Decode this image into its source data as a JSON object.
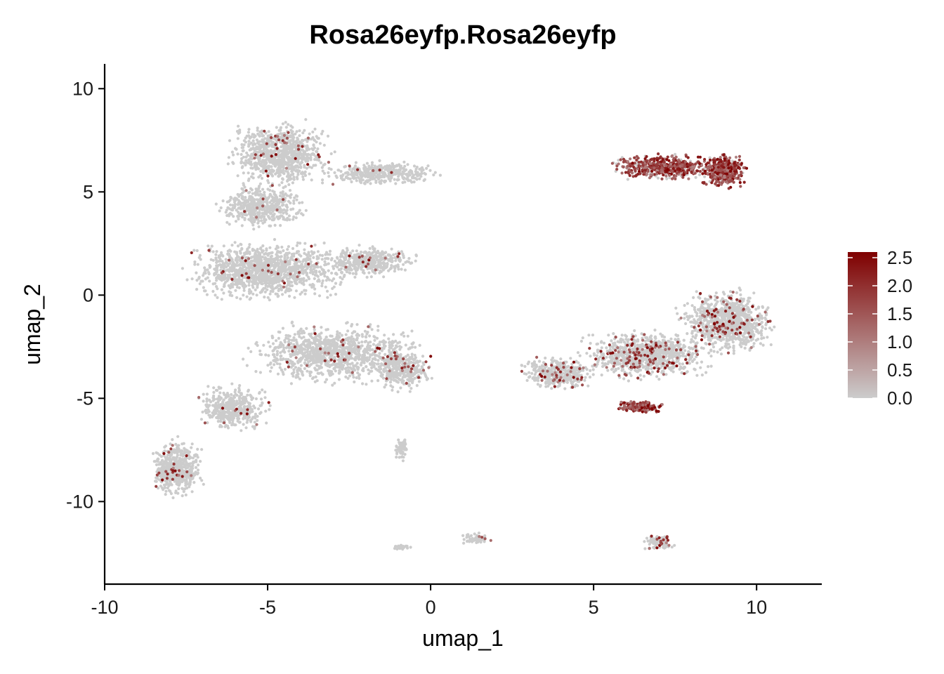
{
  "chart_data": {
    "type": "scatter",
    "title": "Rosa26eyfp.Rosa26eyfp",
    "xlabel": "umap_1",
    "ylabel": "umap_2",
    "xlim": [
      -10,
      12
    ],
    "ylim": [
      -14,
      11.2
    ],
    "x_ticks": [
      -10,
      -5,
      0,
      5,
      10
    ],
    "x_tick_labels": [
      "-10",
      "-5",
      "0",
      "5",
      "10"
    ],
    "y_ticks": [
      -10,
      -5,
      0,
      5,
      10
    ],
    "y_tick_labels": [
      "-10",
      "-5",
      "0",
      "5",
      "10"
    ],
    "grid": false,
    "colors": {
      "low": "#cccccc",
      "high": "#7f0000",
      "axis": "#000000"
    },
    "legend": {
      "position": "right",
      "range": [
        0,
        2.5
      ],
      "ticks": [
        0,
        0.5,
        1,
        1.5,
        2,
        2.5
      ],
      "tick_labels": [
        "0.0",
        "0.5",
        "1.0",
        "1.5",
        "2.0",
        "2.5"
      ]
    },
    "clusters": [
      {
        "id": "upper-left-top",
        "cx": -4.6,
        "cy": 6.8,
        "rx": 1.9,
        "ry": 1.9,
        "n": 900,
        "expr": 0.03
      },
      {
        "id": "upper-left-arm",
        "cx": -1.5,
        "cy": 5.9,
        "rx": 2.3,
        "ry": 0.7,
        "n": 380,
        "expr": 0.02
      },
      {
        "id": "upper-left-neck",
        "cx": -5.2,
        "cy": 4.3,
        "rx": 1.6,
        "ry": 1.2,
        "n": 500,
        "expr": 0.02
      },
      {
        "id": "left-mid",
        "cx": -5.0,
        "cy": 1.2,
        "rx": 2.9,
        "ry": 1.7,
        "n": 1250,
        "expr": 0.03
      },
      {
        "id": "mid-band",
        "cx": -1.9,
        "cy": 1.6,
        "rx": 1.7,
        "ry": 0.9,
        "n": 420,
        "expr": 0.03
      },
      {
        "id": "central-lower",
        "cx": -3.0,
        "cy": -2.8,
        "rx": 3.0,
        "ry": 1.8,
        "n": 1100,
        "expr": 0.03
      },
      {
        "id": "central-right",
        "cx": -0.9,
        "cy": -3.5,
        "rx": 1.1,
        "ry": 1.4,
        "n": 360,
        "expr": 0.04
      },
      {
        "id": "lower-left-stem",
        "cx": -6.1,
        "cy": -5.5,
        "rx": 1.3,
        "ry": 1.3,
        "n": 450,
        "expr": 0.03
      },
      {
        "id": "lower-left-foot",
        "cx": -7.8,
        "cy": -8.4,
        "rx": 0.95,
        "ry": 1.6,
        "n": 560,
        "expr": 0.04
      },
      {
        "id": "small-vertical",
        "cx": -0.9,
        "cy": -7.4,
        "rx": 0.2,
        "ry": 0.7,
        "n": 60,
        "expr": 0.0
      },
      {
        "id": "bottom-left-small",
        "cx": -0.9,
        "cy": -12.2,
        "rx": 0.4,
        "ry": 0.15,
        "n": 30,
        "expr": 0.0
      },
      {
        "id": "bottom-mid-small",
        "cx": 1.4,
        "cy": -11.8,
        "rx": 0.55,
        "ry": 0.35,
        "n": 55,
        "expr": 0.1
      },
      {
        "id": "bottom-right-small",
        "cx": 7.0,
        "cy": -12.0,
        "rx": 0.55,
        "ry": 0.5,
        "n": 110,
        "expr": 0.2
      },
      {
        "id": "upper-right-ring",
        "cx": 7.2,
        "cy": 6.2,
        "rx": 2.0,
        "ry": 0.75,
        "n": 520,
        "expr": 0.8
      },
      {
        "id": "upper-right-dense",
        "cx": 9.0,
        "cy": 6.0,
        "rx": 0.8,
        "ry": 0.95,
        "n": 420,
        "expr": 0.9
      },
      {
        "id": "right-mid-top",
        "cx": 9.1,
        "cy": -1.3,
        "rx": 1.7,
        "ry": 1.8,
        "n": 1000,
        "expr": 0.08
      },
      {
        "id": "right-mid-body",
        "cx": 6.6,
        "cy": -2.9,
        "rx": 2.4,
        "ry": 1.4,
        "n": 900,
        "expr": 0.12
      },
      {
        "id": "right-mid-left",
        "cx": 3.9,
        "cy": -3.8,
        "rx": 1.4,
        "ry": 0.9,
        "n": 400,
        "expr": 0.1
      },
      {
        "id": "right-mid-hotspot",
        "cx": 6.4,
        "cy": -5.4,
        "rx": 0.8,
        "ry": 0.35,
        "n": 230,
        "expr": 0.9
      }
    ]
  }
}
